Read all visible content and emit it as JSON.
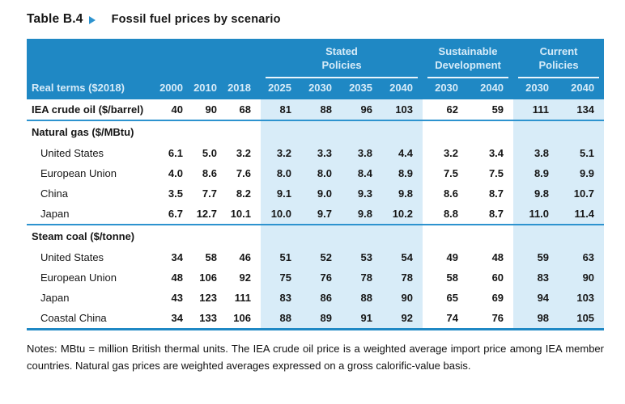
{
  "title": {
    "label": "Table B.4",
    "arrow_icon": "play-icon",
    "subtitle": "Fossil fuel prices by scenario"
  },
  "table": {
    "corner_label": "Real terms ($2018)",
    "groups": [
      {
        "lines": [
          "Stated",
          "Policies"
        ],
        "span": 4
      },
      {
        "lines": [
          "Sustainable",
          "Development"
        ],
        "span": 2
      },
      {
        "lines": [
          "Current",
          "Policies"
        ],
        "span": 2
      }
    ],
    "year_columns": [
      "2000",
      "2010",
      "2018",
      "2025",
      "2030",
      "2035",
      "2040",
      "2030",
      "2040",
      "2030",
      "2040"
    ],
    "shaded_column_indexes": [
      3,
      4,
      5,
      6,
      9,
      10
    ],
    "sections": [
      {
        "header": null,
        "rows": [
          {
            "label": "IEA crude oil ($/barrel)",
            "bold": true,
            "indent": false,
            "values": [
              "40",
              "90",
              "68",
              "81",
              "88",
              "96",
              "103",
              "62",
              "59",
              "111",
              "134"
            ]
          }
        ]
      },
      {
        "header": "Natural gas ($/MBtu)",
        "rows": [
          {
            "label": "United States",
            "bold": false,
            "indent": true,
            "values": [
              "6.1",
              "5.0",
              "3.2",
              "3.2",
              "3.3",
              "3.8",
              "4.4",
              "3.2",
              "3.4",
              "3.8",
              "5.1"
            ]
          },
          {
            "label": "European Union",
            "bold": false,
            "indent": true,
            "values": [
              "4.0",
              "8.6",
              "7.6",
              "8.0",
              "8.0",
              "8.4",
              "8.9",
              "7.5",
              "7.5",
              "8.9",
              "9.9"
            ]
          },
          {
            "label": "China",
            "bold": false,
            "indent": true,
            "values": [
              "3.5",
              "7.7",
              "8.2",
              "9.1",
              "9.0",
              "9.3",
              "9.8",
              "8.6",
              "8.7",
              "9.8",
              "10.7"
            ]
          },
          {
            "label": "Japan",
            "bold": false,
            "indent": true,
            "values": [
              "6.7",
              "12.7",
              "10.1",
              "10.0",
              "9.7",
              "9.8",
              "10.2",
              "8.8",
              "8.7",
              "11.0",
              "11.4"
            ]
          }
        ]
      },
      {
        "header": "Steam coal ($/tonne)",
        "rows": [
          {
            "label": "United States",
            "bold": false,
            "indent": true,
            "values": [
              "34",
              "58",
              "46",
              "51",
              "52",
              "53",
              "54",
              "49",
              "48",
              "59",
              "63"
            ]
          },
          {
            "label": "European Union",
            "bold": false,
            "indent": true,
            "values": [
              "48",
              "106",
              "92",
              "75",
              "76",
              "78",
              "78",
              "58",
              "60",
              "83",
              "90"
            ]
          },
          {
            "label": "Japan",
            "bold": false,
            "indent": true,
            "values": [
              "43",
              "123",
              "111",
              "83",
              "86",
              "88",
              "90",
              "65",
              "69",
              "94",
              "103"
            ]
          },
          {
            "label": "Coastal China",
            "bold": false,
            "indent": true,
            "values": [
              "34",
              "133",
              "106",
              "88",
              "89",
              "91",
              "92",
              "74",
              "76",
              "98",
              "105"
            ]
          }
        ]
      }
    ]
  },
  "notes": "Notes: MBtu = million British thermal units. The IEA crude oil price is a weighted average import price among IEA member countries. Natural gas prices are weighted averages expressed on a gross calorific-value basis.",
  "colors": {
    "header_blue": "#1f88c4",
    "shade_blue": "#d8ecf8",
    "line_blue": "#2d93cf",
    "pale_header_text": "#d6ebf8"
  }
}
